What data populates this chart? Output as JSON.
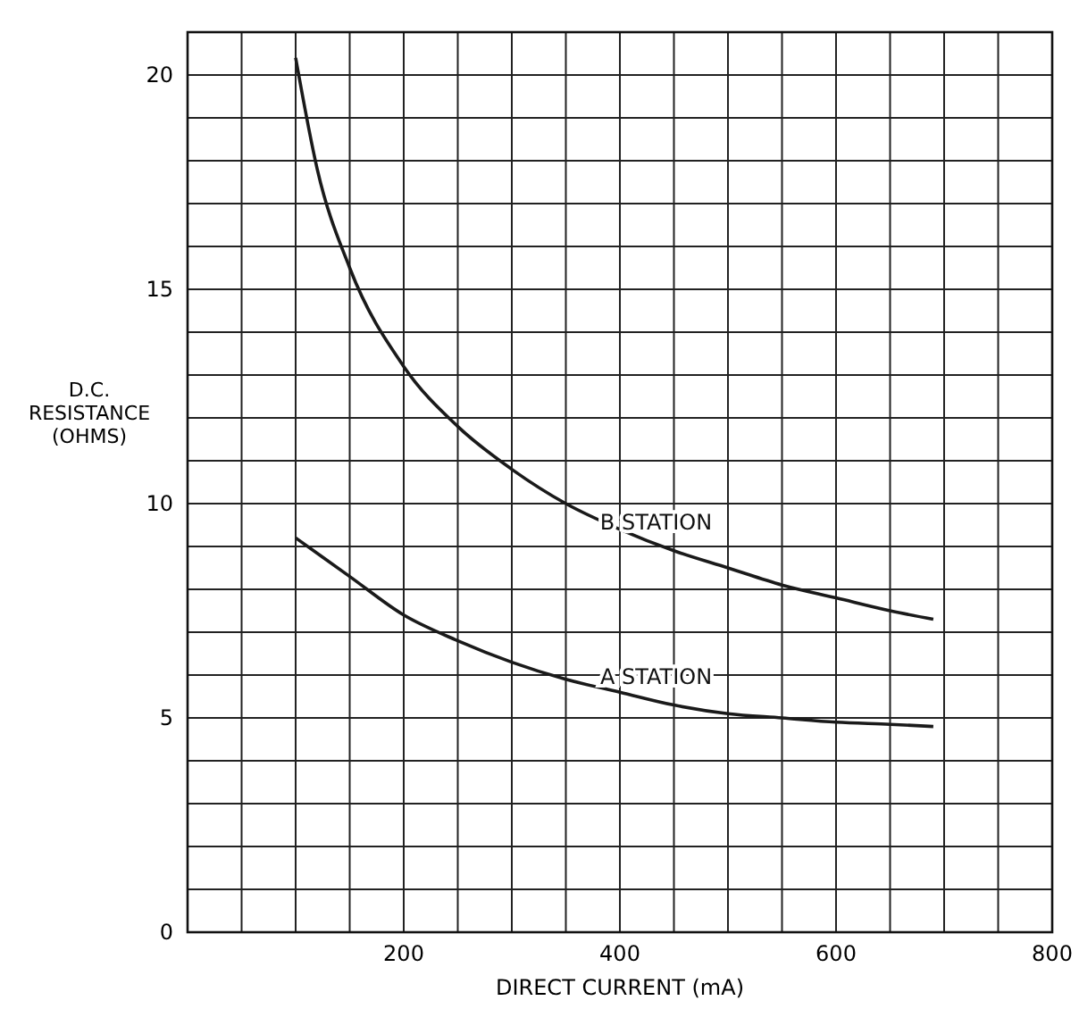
{
  "chart_data": {
    "type": "line",
    "xlabel": "DIRECT CURRENT (mA)",
    "ylabel": "D.C.\nRESISTANCE\n(OHMS)",
    "xlim": [
      0,
      800
    ],
    "ylim": [
      0,
      21
    ],
    "xticks": [
      {
        "value": 0,
        "label": null
      },
      {
        "value": 50,
        "label": null
      },
      {
        "value": 100,
        "label": null
      },
      {
        "value": 150,
        "label": null
      },
      200,
      {
        "value": 250,
        "label": null
      },
      {
        "value": 300,
        "label": null
      },
      {
        "value": 350,
        "label": null
      },
      400,
      {
        "value": 450,
        "label": null
      },
      {
        "value": 500,
        "label": null
      },
      {
        "value": 550,
        "label": null
      },
      600,
      {
        "value": 650,
        "label": null
      },
      {
        "value": 700,
        "label": null
      },
      {
        "value": 750,
        "label": null
      },
      800
    ],
    "yticks": [
      0,
      {
        "value": 1,
        "label": null
      },
      {
        "value": 2,
        "label": null
      },
      {
        "value": 3,
        "label": null
      },
      {
        "value": 4,
        "label": null
      },
      5,
      {
        "value": 6,
        "label": null
      },
      {
        "value": 7,
        "label": null
      },
      {
        "value": 8,
        "label": null
      },
      {
        "value": 9,
        "label": null
      },
      10,
      {
        "value": 11,
        "label": null
      },
      {
        "value": 12,
        "label": null
      },
      {
        "value": 13,
        "label": null
      },
      {
        "value": 14,
        "label": null
      },
      15,
      {
        "value": 16,
        "label": null
      },
      {
        "value": 17,
        "label": null
      },
      {
        "value": 18,
        "label": null
      },
      {
        "value": 19,
        "label": null
      },
      20,
      {
        "value": 21,
        "label": null
      }
    ],
    "grid": true,
    "marker": "none",
    "line_style": "solid",
    "series": [
      {
        "name": "B STATION",
        "color": "#1a1a1a",
        "x": [
          100,
          120,
          150,
          200,
          250,
          300,
          350,
          400,
          450,
          500,
          550,
          600,
          650,
          690
        ],
        "values": [
          20.4,
          17.8,
          15.5,
          13.2,
          11.8,
          10.8,
          10.0,
          9.4,
          8.9,
          8.5,
          8.1,
          7.8,
          7.5,
          7.3
        ]
      },
      {
        "name": "A STATION",
        "color": "#1a1a1a",
        "x": [
          100,
          150,
          200,
          250,
          300,
          350,
          400,
          450,
          500,
          550,
          600,
          650,
          690
        ],
        "values": [
          9.2,
          8.3,
          7.4,
          6.8,
          6.3,
          5.9,
          5.6,
          5.3,
          5.1,
          5.0,
          4.9,
          4.85,
          4.8
        ]
      }
    ]
  }
}
